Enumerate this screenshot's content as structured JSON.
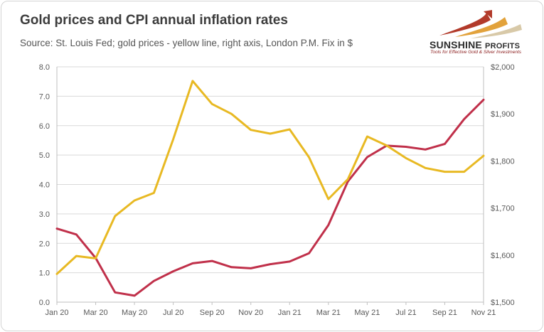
{
  "header": {
    "title": "Gold prices and CPI annual inflation rates",
    "subtitle": "Source: St. Louis Fed; gold prices - yellow line, right axis, London P.M. Fix in $"
  },
  "logo": {
    "name_main": "Sunshine",
    "name_second": "Profits",
    "tagline": "Tools for Effective Gold & Silver Investments"
  },
  "chart_data": {
    "type": "line",
    "title": "Gold prices and CPI annual inflation rates",
    "subtitle": "Source: St. Louis Fed; gold prices - yellow line, right axis, London P.M. Fix in $",
    "x": [
      "Jan 20",
      "Feb 20",
      "Mar 20",
      "Apr 20",
      "May 20",
      "Jun 20",
      "Jul 20",
      "Aug 20",
      "Sep 20",
      "Oct 20",
      "Nov 20",
      "Dec 20",
      "Jan 21",
      "Feb 21",
      "Mar 21",
      "Apr 21",
      "May 21",
      "Jun 21",
      "Jul 21",
      "Aug 21",
      "Sep 21",
      "Oct 21",
      "Nov 21"
    ],
    "x_tick_labels": [
      "Jan 20",
      "Mar 20",
      "May 20",
      "Jul 20",
      "Sep 20",
      "Nov 20",
      "Jan 21",
      "Mar 21",
      "May 21",
      "Jul 21",
      "Sep 21",
      "Nov 21"
    ],
    "series": [
      {
        "axis": "left",
        "color": "#c0304a",
        "values": [
          2.5,
          2.3,
          1.5,
          0.33,
          0.22,
          0.72,
          1.05,
          1.32,
          1.4,
          1.19,
          1.15,
          1.29,
          1.38,
          1.66,
          2.62,
          4.1,
          4.93,
          5.32,
          5.28,
          5.19,
          5.38,
          6.22,
          6.88
        ]
      },
      {
        "axis": "right",
        "color": "#e8b923",
        "values": [
          1560,
          1598,
          1593,
          1683,
          1716,
          1732,
          1846,
          1970,
          1921,
          1900,
          1866,
          1858,
          1867,
          1808,
          1719,
          1761,
          1852,
          1833,
          1806,
          1785,
          1777,
          1777,
          1811
        ]
      }
    ],
    "y_left": {
      "min": 0,
      "max": 8,
      "ticks": [
        "0.0",
        "1.0",
        "2.0",
        "3.0",
        "4.0",
        "5.0",
        "6.0",
        "7.0",
        "8.0"
      ]
    },
    "y_right": {
      "min": 1500,
      "max": 2000,
      "ticks": [
        "$1,500",
        "$1,600",
        "$1,700",
        "$1,800",
        "$1,900",
        "$2,000"
      ]
    },
    "grid": "horizontal",
    "legend": "none"
  }
}
